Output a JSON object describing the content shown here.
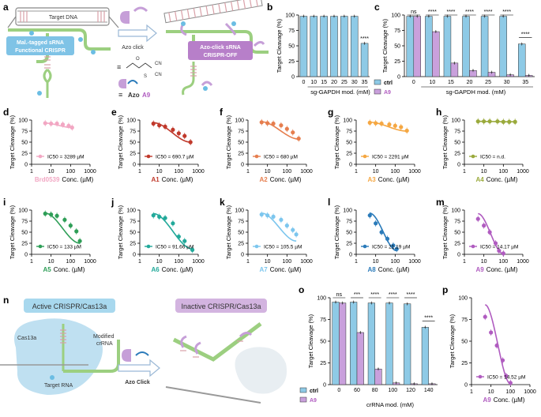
{
  "panel_a": {
    "letter": "a",
    "target_dna": "Target DNA",
    "box1_line1": "Mal.-tagged sRNA",
    "box1_line2": "Functional CRISPR",
    "azo_click": "Azo click",
    "box2_line1": "Azo-click sRNA",
    "box2_line2": "CRISPR-OFF",
    "equiv": "≡",
    "azo_label": "Azo",
    "a9_label": "A9"
  },
  "panel_n": {
    "letter": "n",
    "active_title": "Active CRISPR/Cas13a",
    "inactive_title": "Inactive CRISPR/Cas13a",
    "cas13a": "Cas13a",
    "modified": "Modified",
    "crrna": "crRNA",
    "target_rna": "Target RNA",
    "azo_click": "Azo Click"
  },
  "colors": {
    "blue_bar": "#8ecae6",
    "purple_bar": "#c9a0dc",
    "purple_line": "#b05cc0",
    "pink": "#f2a7c3",
    "red": "#c0392b",
    "orange_dark": "#e67e4e",
    "orange": "#f5a742",
    "olive": "#9aaa3c",
    "green": "#2e9e57",
    "teal": "#22a99a",
    "light_blue": "#7cc6ee",
    "blue": "#2b7bba",
    "box_blue": "#7fc3e6",
    "box_purple": "#b77fc9"
  },
  "chart_data": [
    {
      "id": "b",
      "letter": "b",
      "type": "bar",
      "ylabel": "Target Cleavage (%)",
      "xlabel": "sg-GAPDH mod. (mM)",
      "categories": [
        "0",
        "10",
        "15",
        "20",
        "25",
        "30",
        "35"
      ],
      "values": [
        98,
        98,
        98,
        98,
        98,
        98,
        54
      ],
      "ylim": [
        0,
        100
      ],
      "yticks": [
        "0",
        "25",
        "50",
        "75",
        "100"
      ],
      "annotations": [
        {
          "index": 6,
          "text": "****"
        }
      ]
    },
    {
      "id": "c",
      "letter": "c",
      "type": "bar",
      "ylabel": "Target Cleavage (%)",
      "xlabel": "sg-GAPDH mod. (mM)",
      "categories": [
        "0",
        "10",
        "15",
        "20",
        "25",
        "30",
        "35"
      ],
      "series": [
        {
          "name": "ctrl",
          "values": [
            98,
            98,
            98,
            98,
            98,
            98,
            53
          ]
        },
        {
          "name": "A9",
          "values": [
            98,
            73,
            22,
            10,
            7,
            3,
            2
          ]
        }
      ],
      "ylim": [
        0,
        100
      ],
      "yticks": [
        "0",
        "25",
        "50",
        "75",
        "100"
      ],
      "annotations": [
        "ns",
        "****",
        "****",
        "****",
        "****",
        "****",
        "****"
      ]
    },
    {
      "id": "o",
      "letter": "o",
      "type": "bar",
      "ylabel": "Target Cleavage (%)",
      "xlabel": "crRNA mod. (mM)",
      "categories": [
        "0",
        "60",
        "80",
        "100",
        "120",
        "140"
      ],
      "series": [
        {
          "name": "ctrl",
          "values": [
            95,
            95,
            94,
            94,
            93,
            66
          ]
        },
        {
          "name": "A9",
          "values": [
            94,
            60,
            18,
            2,
            1,
            1
          ]
        }
      ],
      "ylim": [
        0,
        100
      ],
      "yticks": [
        "0",
        "25",
        "50",
        "75",
        "100"
      ],
      "annotations": [
        "ns",
        "***",
        "****",
        "****",
        "****",
        "****"
      ]
    },
    {
      "id": "d",
      "letter": "d",
      "type": "line",
      "name": "Brd0539",
      "ic50": "IC50 = 3289 µM",
      "ylabel": "Target Cleavage (%)",
      "xlabel": "Conc. (µM)",
      "x": [
        5,
        10,
        20,
        40,
        80,
        120
      ],
      "y": [
        93,
        92,
        92,
        90,
        87,
        83
      ],
      "fit": [
        93,
        83
      ]
    },
    {
      "id": "e",
      "letter": "e",
      "type": "line",
      "name": "A1",
      "ic50": "IC50 = 690.7 µM",
      "ylabel": "",
      "xlabel": "Conc. (µM)",
      "x": [
        5,
        10,
        20,
        50,
        100,
        200,
        400
      ],
      "y": [
        92,
        88,
        85,
        78,
        70,
        64,
        50
      ],
      "fit": [
        94,
        50
      ]
    },
    {
      "id": "f",
      "letter": "f",
      "type": "line",
      "name": "A2",
      "ic50": "IC50 = 680 µM",
      "ylabel": "",
      "xlabel": "Conc. (µM)",
      "x": [
        5,
        10,
        20,
        50,
        100,
        200,
        400
      ],
      "y": [
        95,
        93,
        92,
        88,
        80,
        72,
        58
      ],
      "fit": [
        96,
        57
      ]
    },
    {
      "id": "g",
      "letter": "g",
      "type": "line",
      "name": "A3",
      "ic50": "IC50 = 2291 µM",
      "ylabel": "",
      "xlabel": "Conc. (µM)",
      "x": [
        5,
        10,
        20,
        50,
        100,
        200,
        400
      ],
      "y": [
        94,
        93,
        92,
        90,
        87,
        84,
        76
      ],
      "fit": [
        95,
        75
      ]
    },
    {
      "id": "h",
      "letter": "h",
      "type": "line",
      "name": "A4",
      "ic50": "IC50 = n.d.",
      "ylabel": "",
      "xlabel": "Conc. (µM)",
      "x": [
        5,
        10,
        20,
        50,
        100,
        200,
        400
      ],
      "y": [
        97,
        97,
        97,
        97,
        96,
        96,
        96
      ],
      "fit": [
        97,
        96
      ]
    },
    {
      "id": "i",
      "letter": "i",
      "type": "line",
      "name": "A5",
      "ic50": "IC50 = 133 µM",
      "ylabel": "Target Cleavage (%)",
      "xlabel": "Conc. (µM)",
      "x": [
        5,
        10,
        20,
        50,
        100,
        200,
        300
      ],
      "y": [
        92,
        90,
        87,
        78,
        65,
        52,
        30
      ],
      "fit": [
        93,
        25
      ]
    },
    {
      "id": "j",
      "letter": "j",
      "type": "line",
      "name": "A6",
      "ic50": "IC50 = 91.66 µM",
      "ylabel": "",
      "xlabel": "Conc. (µM)",
      "x": [
        5,
        10,
        20,
        50,
        100,
        200,
        500
      ],
      "y": [
        88,
        85,
        82,
        70,
        40,
        30,
        10
      ],
      "fit": [
        92,
        12
      ]
    },
    {
      "id": "k",
      "letter": "k",
      "type": "line",
      "name": "A7",
      "ic50": "IC50 = 105.5 µM",
      "ylabel": "",
      "xlabel": "Conc. (µM)",
      "x": [
        5,
        10,
        20,
        50,
        100,
        200,
        300
      ],
      "y": [
        90,
        88,
        85,
        78,
        65,
        55,
        45
      ],
      "fit": [
        93,
        30
      ]
    },
    {
      "id": "l",
      "letter": "l",
      "type": "line",
      "name": "A8",
      "ic50": "IC50 = 21.19 µM",
      "ylabel": "",
      "xlabel": "Conc. (µM)",
      "x": [
        5,
        10,
        20,
        40,
        80,
        120
      ],
      "y": [
        88,
        70,
        50,
        35,
        20,
        12
      ],
      "fit": [
        93,
        8
      ]
    },
    {
      "id": "m",
      "letter": "m",
      "type": "line",
      "name": "A9",
      "ic50": "IC50 = 14.17 µM",
      "ylabel": "",
      "xlabel": "Conc. (µM)",
      "x": [
        5,
        10,
        20,
        40,
        60,
        100
      ],
      "y": [
        80,
        65,
        50,
        25,
        8,
        2
      ],
      "fit": [
        92,
        1
      ]
    },
    {
      "id": "p",
      "letter": "p",
      "type": "line",
      "name": "A9",
      "ic50": "IC50 = 14.52 µM",
      "ylabel": "Target Cleavage (%)",
      "xlabel": "Conc. (µM)",
      "x": [
        5,
        10,
        20,
        40,
        60,
        100
      ],
      "y": [
        78,
        60,
        45,
        28,
        10,
        2
      ],
      "fit": [
        92,
        1
      ]
    }
  ],
  "dose_axis": {
    "yticks": [
      "0",
      "25",
      "50",
      "75",
      "100"
    ],
    "xticks": [
      "1",
      "10",
      "100",
      "1000"
    ]
  }
}
